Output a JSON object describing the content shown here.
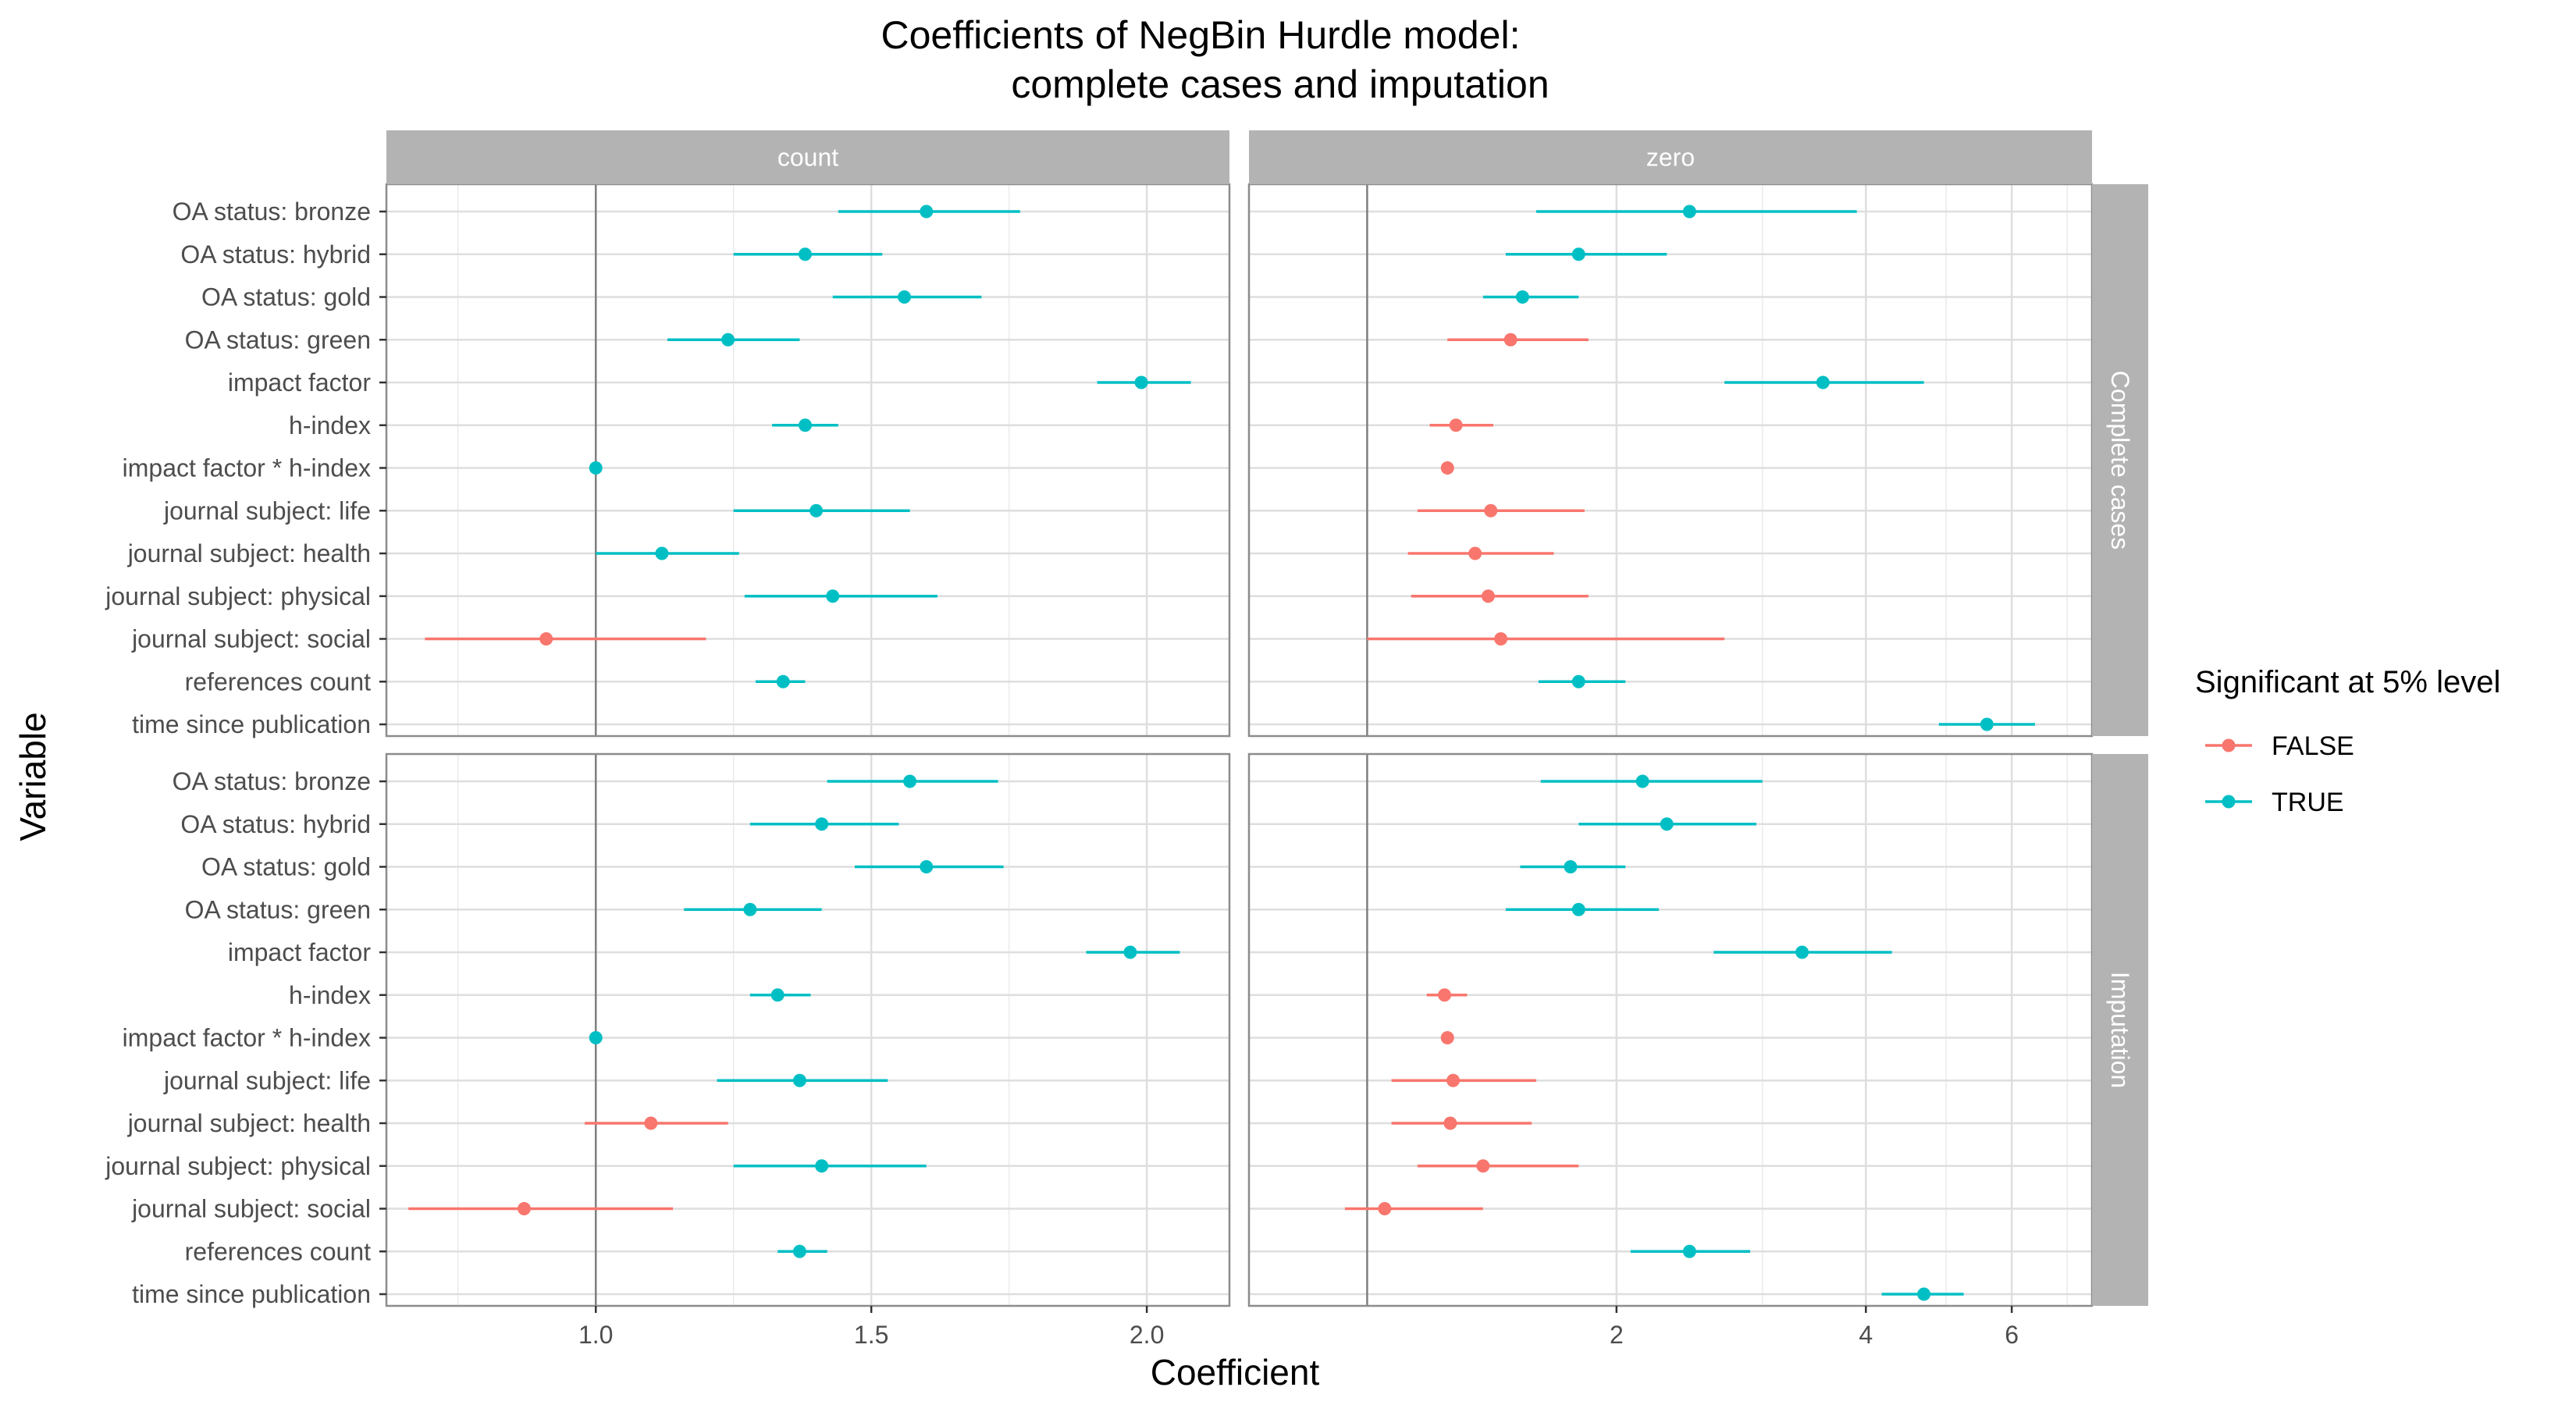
{
  "chart_data": {
    "type": "forest",
    "title": [
      "Coefficients of NegBin Hurdle model:",
      "complete cases and imputation"
    ],
    "xlabel": "Coefficient",
    "ylabel": "Variable",
    "legend": {
      "title": "Significant at 5% level",
      "position": "right",
      "entries": [
        {
          "label": "FALSE",
          "color": "#F8766D"
        },
        {
          "label": "TRUE",
          "color": "#00BFC4"
        }
      ]
    },
    "grid": true,
    "reference_line": 1,
    "columns": [
      {
        "label": "count",
        "scale": "linear",
        "xlim": [
          0.62,
          2.15
        ],
        "ticks": [
          1.0,
          1.5,
          2.0
        ],
        "tick_labels": [
          "1.0",
          "1.5",
          "2.0"
        ]
      },
      {
        "label": "zero",
        "scale": "log",
        "xlim": [
          0.72,
          7.5
        ],
        "ticks": [
          2,
          4,
          6
        ],
        "tick_labels": [
          "2",
          "4",
          "6"
        ]
      }
    ],
    "rows": [
      {
        "label": "Complete cases"
      },
      {
        "label": "Imputation"
      }
    ],
    "variables": [
      "OA status: bronze",
      "OA status: hybrid",
      "OA status: gold",
      "OA status: green",
      "impact factor",
      "h-index",
      "impact factor * h-index",
      "journal subject: life",
      "journal subject: health",
      "journal subject: physical",
      "journal subject: social",
      "references count",
      "time since publication"
    ],
    "panels": [
      {
        "row": "Complete cases",
        "column": "count",
        "points": [
          {
            "variable": "OA status: bronze",
            "estimate": 1.6,
            "lower": 1.44,
            "upper": 1.77,
            "significant": true
          },
          {
            "variable": "OA status: hybrid",
            "estimate": 1.38,
            "lower": 1.25,
            "upper": 1.52,
            "significant": true
          },
          {
            "variable": "OA status: gold",
            "estimate": 1.56,
            "lower": 1.43,
            "upper": 1.7,
            "significant": true
          },
          {
            "variable": "OA status: green",
            "estimate": 1.24,
            "lower": 1.13,
            "upper": 1.37,
            "significant": true
          },
          {
            "variable": "impact factor",
            "estimate": 1.99,
            "lower": 1.91,
            "upper": 2.08,
            "significant": true
          },
          {
            "variable": "h-index",
            "estimate": 1.38,
            "lower": 1.32,
            "upper": 1.44,
            "significant": true
          },
          {
            "variable": "impact factor * h-index",
            "estimate": 1.0,
            "lower": 1.0,
            "upper": 1.0,
            "significant": true
          },
          {
            "variable": "journal subject: life",
            "estimate": 1.4,
            "lower": 1.25,
            "upper": 1.57,
            "significant": true
          },
          {
            "variable": "journal subject: health",
            "estimate": 1.12,
            "lower": 1.0,
            "upper": 1.26,
            "significant": true
          },
          {
            "variable": "journal subject: physical",
            "estimate": 1.43,
            "lower": 1.27,
            "upper": 1.62,
            "significant": true
          },
          {
            "variable": "journal subject: social",
            "estimate": 0.91,
            "lower": 0.69,
            "upper": 1.2,
            "significant": false
          },
          {
            "variable": "references count",
            "estimate": 1.34,
            "lower": 1.29,
            "upper": 1.38,
            "significant": true
          },
          {
            "variable": "time since publication",
            "estimate": null,
            "lower": null,
            "upper": null,
            "significant": null
          }
        ]
      },
      {
        "row": "Complete cases",
        "column": "zero",
        "points": [
          {
            "variable": "OA status: bronze",
            "estimate": 2.45,
            "lower": 1.6,
            "upper": 3.9,
            "significant": true
          },
          {
            "variable": "OA status: hybrid",
            "estimate": 1.8,
            "lower": 1.47,
            "upper": 2.3,
            "significant": true
          },
          {
            "variable": "OA status: gold",
            "estimate": 1.54,
            "lower": 1.38,
            "upper": 1.8,
            "significant": true
          },
          {
            "variable": "OA status: green",
            "estimate": 1.49,
            "lower": 1.25,
            "upper": 1.85,
            "significant": false
          },
          {
            "variable": "impact factor",
            "estimate": 3.55,
            "lower": 2.7,
            "upper": 4.7,
            "significant": true
          },
          {
            "variable": "h-index",
            "estimate": 1.28,
            "lower": 1.19,
            "upper": 1.42,
            "significant": false
          },
          {
            "variable": "impact factor * h-index",
            "estimate": 1.25,
            "lower": 1.25,
            "upper": 1.25,
            "significant": false
          },
          {
            "variable": "journal subject: life",
            "estimate": 1.41,
            "lower": 1.15,
            "upper": 1.83,
            "significant": false
          },
          {
            "variable": "journal subject: health",
            "estimate": 1.35,
            "lower": 1.12,
            "upper": 1.68,
            "significant": false
          },
          {
            "variable": "journal subject: physical",
            "estimate": 1.4,
            "lower": 1.13,
            "upper": 1.85,
            "significant": false
          },
          {
            "variable": "journal subject: social",
            "estimate": 1.45,
            "lower": 1.0,
            "upper": 2.7,
            "significant": false
          },
          {
            "variable": "references count",
            "estimate": 1.8,
            "lower": 1.61,
            "upper": 2.05,
            "significant": true
          },
          {
            "variable": "time since publication",
            "estimate": 5.6,
            "lower": 4.9,
            "upper": 6.4,
            "significant": true
          }
        ]
      },
      {
        "row": "Imputation",
        "column": "count",
        "points": [
          {
            "variable": "OA status: bronze",
            "estimate": 1.57,
            "lower": 1.42,
            "upper": 1.73,
            "significant": true
          },
          {
            "variable": "OA status: hybrid",
            "estimate": 1.41,
            "lower": 1.28,
            "upper": 1.55,
            "significant": true
          },
          {
            "variable": "OA status: gold",
            "estimate": 1.6,
            "lower": 1.47,
            "upper": 1.74,
            "significant": true
          },
          {
            "variable": "OA status: green",
            "estimate": 1.28,
            "lower": 1.16,
            "upper": 1.41,
            "significant": true
          },
          {
            "variable": "impact factor",
            "estimate": 1.97,
            "lower": 1.89,
            "upper": 2.06,
            "significant": true
          },
          {
            "variable": "h-index",
            "estimate": 1.33,
            "lower": 1.28,
            "upper": 1.39,
            "significant": true
          },
          {
            "variable": "impact factor * h-index",
            "estimate": 1.0,
            "lower": 1.0,
            "upper": 1.0,
            "significant": true
          },
          {
            "variable": "journal subject: life",
            "estimate": 1.37,
            "lower": 1.22,
            "upper": 1.53,
            "significant": true
          },
          {
            "variable": "journal subject: health",
            "estimate": 1.1,
            "lower": 0.98,
            "upper": 1.24,
            "significant": false
          },
          {
            "variable": "journal subject: physical",
            "estimate": 1.41,
            "lower": 1.25,
            "upper": 1.6,
            "significant": true
          },
          {
            "variable": "journal subject: social",
            "estimate": 0.87,
            "lower": 0.66,
            "upper": 1.14,
            "significant": false
          },
          {
            "variable": "references count",
            "estimate": 1.37,
            "lower": 1.33,
            "upper": 1.42,
            "significant": true
          },
          {
            "variable": "time since publication",
            "estimate": null,
            "lower": null,
            "upper": null,
            "significant": null
          }
        ]
      },
      {
        "row": "Imputation",
        "column": "zero",
        "points": [
          {
            "variable": "OA status: bronze",
            "estimate": 2.15,
            "lower": 1.62,
            "upper": 3.0,
            "significant": true
          },
          {
            "variable": "OA status: hybrid",
            "estimate": 2.3,
            "lower": 1.8,
            "upper": 2.95,
            "significant": true
          },
          {
            "variable": "OA status: gold",
            "estimate": 1.76,
            "lower": 1.53,
            "upper": 2.05,
            "significant": true
          },
          {
            "variable": "OA status: green",
            "estimate": 1.8,
            "lower": 1.47,
            "upper": 2.25,
            "significant": true
          },
          {
            "variable": "impact factor",
            "estimate": 3.35,
            "lower": 2.62,
            "upper": 4.3,
            "significant": true
          },
          {
            "variable": "h-index",
            "estimate": 1.24,
            "lower": 1.18,
            "upper": 1.32,
            "significant": false
          },
          {
            "variable": "impact factor * h-index",
            "estimate": 1.25,
            "lower": 1.25,
            "upper": 1.25,
            "significant": false
          },
          {
            "variable": "journal subject: life",
            "estimate": 1.27,
            "lower": 1.07,
            "upper": 1.6,
            "significant": false
          },
          {
            "variable": "journal subject: health",
            "estimate": 1.26,
            "lower": 1.07,
            "upper": 1.58,
            "significant": false
          },
          {
            "variable": "journal subject: physical",
            "estimate": 1.38,
            "lower": 1.15,
            "upper": 1.8,
            "significant": false
          },
          {
            "variable": "journal subject: social",
            "estimate": 1.05,
            "lower": 0.94,
            "upper": 1.38,
            "significant": false
          },
          {
            "variable": "references count",
            "estimate": 2.45,
            "lower": 2.08,
            "upper": 2.9,
            "significant": true
          },
          {
            "variable": "time since publication",
            "estimate": 4.7,
            "lower": 4.18,
            "upper": 5.25,
            "significant": true
          }
        ]
      }
    ]
  }
}
